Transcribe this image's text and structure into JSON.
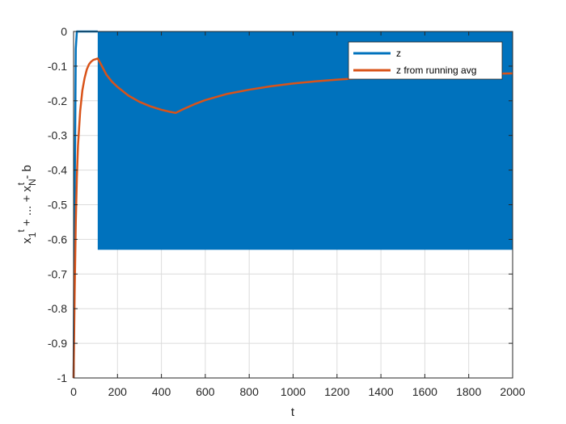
{
  "chart_data": {
    "type": "line",
    "xlabel": "t",
    "ylabel": {
      "base1": "x",
      "sub1": "1",
      "sup1": "t",
      "middle": " + ... + x",
      "sub2": "N",
      "sup2": "t",
      "tail": " - b"
    },
    "xlim": [
      0,
      2000
    ],
    "ylim": [
      -1,
      0
    ],
    "xticks": [
      0,
      200,
      400,
      600,
      800,
      1000,
      1200,
      1400,
      1600,
      1800,
      2000
    ],
    "yticks": [
      0,
      -0.1,
      -0.2,
      -0.3,
      -0.4,
      -0.5,
      -0.6,
      -0.7,
      -0.8,
      -0.9,
      -1
    ],
    "ytick_labels": [
      "0",
      "-0.1",
      "-0.2",
      "-0.3",
      "-0.4",
      "-0.5",
      "-0.6",
      "-0.7",
      "-0.8",
      "-0.9",
      "-1"
    ],
    "grid": true,
    "legend_position": "top-right",
    "series": [
      {
        "name": "z",
        "color": "#0072BD",
        "points": [
          [
            0,
            -1
          ],
          [
            5,
            -0.5
          ],
          [
            10,
            -0.05
          ],
          [
            15,
            0
          ],
          [
            110,
            0
          ]
        ],
        "oscillation": {
          "x_start": 110,
          "x_end": 2000,
          "y_min": -0.63,
          "y_max": 0
        }
      },
      {
        "name": "z from running avg",
        "color": "#D95319",
        "points": [
          [
            0,
            -1
          ],
          [
            5,
            -0.75
          ],
          [
            10,
            -0.55
          ],
          [
            15,
            -0.42
          ],
          [
            20,
            -0.33
          ],
          [
            30,
            -0.23
          ],
          [
            40,
            -0.17
          ],
          [
            50,
            -0.135
          ],
          [
            60,
            -0.11
          ],
          [
            70,
            -0.095
          ],
          [
            80,
            -0.087
          ],
          [
            90,
            -0.082
          ],
          [
            100,
            -0.08
          ],
          [
            110,
            -0.078
          ],
          [
            125,
            -0.095
          ],
          [
            150,
            -0.125
          ],
          [
            175,
            -0.145
          ],
          [
            200,
            -0.16
          ],
          [
            250,
            -0.185
          ],
          [
            300,
            -0.203
          ],
          [
            350,
            -0.216
          ],
          [
            400,
            -0.226
          ],
          [
            440,
            -0.232
          ],
          [
            465,
            -0.235
          ],
          [
            500,
            -0.224
          ],
          [
            550,
            -0.21
          ],
          [
            600,
            -0.198
          ],
          [
            700,
            -0.18
          ],
          [
            800,
            -0.168
          ],
          [
            900,
            -0.158
          ],
          [
            1000,
            -0.15
          ],
          [
            1100,
            -0.144
          ],
          [
            1200,
            -0.139
          ],
          [
            1300,
            -0.135
          ],
          [
            1400,
            -0.132
          ],
          [
            1500,
            -0.129
          ],
          [
            1600,
            -0.127
          ],
          [
            1700,
            -0.125
          ],
          [
            1800,
            -0.123
          ],
          [
            1900,
            -0.122
          ],
          [
            2000,
            -0.121
          ]
        ]
      }
    ]
  }
}
